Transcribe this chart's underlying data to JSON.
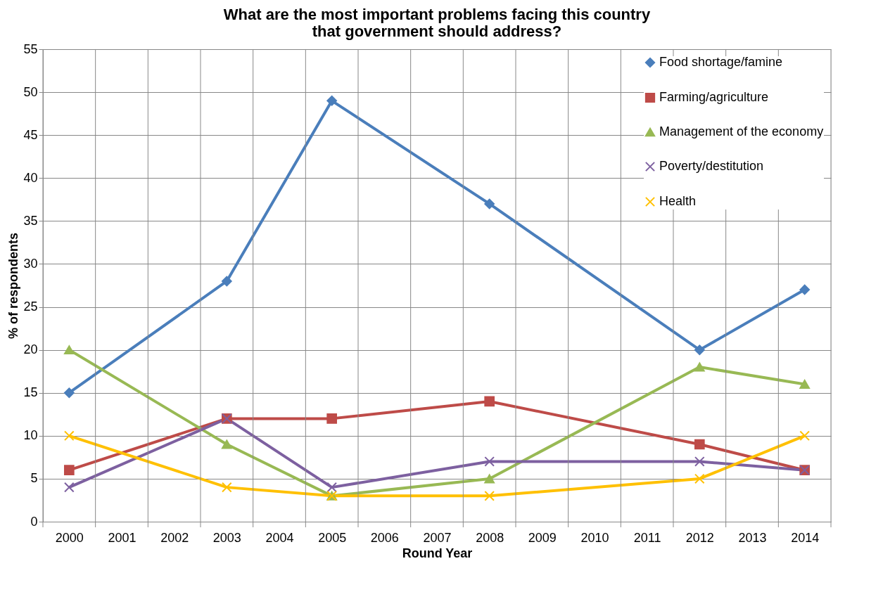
{
  "chart_data": {
    "type": "line",
    "title": "What are the most important problems facing this country that government should address?",
    "xlabel": "Round Year",
    "ylabel": "% of respondents",
    "xlim": [
      1999.5,
      2014.5
    ],
    "xticks": [
      {
        "value": 1999.5,
        "label": null
      },
      2000,
      {
        "value": 2000.5,
        "label": null
      },
      2001,
      {
        "value": 2001.5,
        "label": null
      },
      2002,
      {
        "value": 2002.5,
        "label": null
      },
      2003,
      {
        "value": 2003.5,
        "label": null
      },
      2004,
      {
        "value": 2004.5,
        "label": null
      },
      2005,
      {
        "value": 2005.5,
        "label": null
      },
      2006,
      {
        "value": 2006.5,
        "label": null
      },
      2007,
      {
        "value": 2007.5,
        "label": null
      },
      2008,
      {
        "value": 2008.5,
        "label": null
      },
      2009,
      {
        "value": 2009.5,
        "label": null
      },
      2010,
      {
        "value": 2010.5,
        "label": null
      },
      2011,
      {
        "value": 2011.5,
        "label": null
      },
      2012,
      {
        "value": 2012.5,
        "label": null
      },
      2013,
      {
        "value": 2013.5,
        "label": null
      },
      2014,
      {
        "value": 2014.5,
        "label": null
      }
    ],
    "ylim": [
      0,
      55
    ],
    "yticks": [
      0,
      5,
      10,
      15,
      20,
      25,
      30,
      35,
      40,
      45,
      50,
      55
    ],
    "grid": true,
    "legend": "top right",
    "line_style": "solid",
    "series": [
      {
        "name": "Food shortage/famine",
        "color": "#4a7ebb",
        "marker": "diamond",
        "x": [
          2000,
          2003,
          2005,
          2008,
          2012,
          2014
        ],
        "values": [
          15,
          28,
          49,
          37,
          20,
          27
        ]
      },
      {
        "name": "Farming/agriculture",
        "color": "#be4b48",
        "marker": "square",
        "x": [
          2000,
          2003,
          2005,
          2008,
          2012,
          2014
        ],
        "values": [
          6,
          12,
          12,
          14,
          9,
          6
        ]
      },
      {
        "name": "Management of the economy",
        "color": "#98b954",
        "marker": "triangle",
        "x": [
          2000,
          2003,
          2005,
          2008,
          2012,
          2014
        ],
        "values": [
          20,
          9,
          3,
          5,
          18,
          16
        ]
      },
      {
        "name": "Poverty/destitution",
        "color": "#7d60a0",
        "marker": "cross",
        "x": [
          2000,
          2003,
          2005,
          2008,
          2012,
          2014
        ],
        "values": [
          4,
          12,
          4,
          7,
          7,
          6
        ]
      },
      {
        "name": "Health",
        "color": "#ffc000",
        "marker": "cross",
        "x": [
          2000,
          2003,
          2005,
          2008,
          2012,
          2014
        ],
        "values": [
          10,
          4,
          3,
          3,
          5,
          10
        ]
      }
    ]
  }
}
